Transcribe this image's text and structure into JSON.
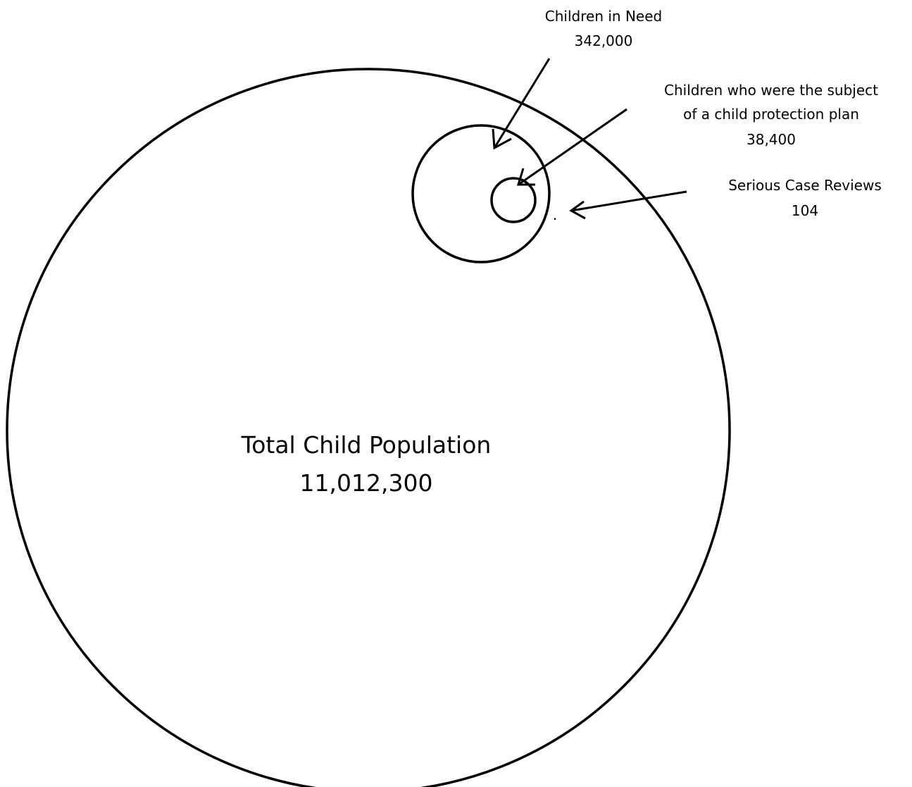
{
  "diagram": {
    "population": {
      "name": "Total Child Population",
      "value": "11,012,300"
    },
    "children_in_need": {
      "name": "Children in Need",
      "value": "342,000"
    },
    "protection_plan": {
      "name_line1": "Children who were the subject",
      "name_line2": "of a child protection plan",
      "value": "38,400"
    },
    "serious_case_reviews": {
      "name": "Serious Case Reviews",
      "value": "104",
      "marker": "."
    },
    "colors": {
      "stroke": "#000000",
      "background": "#ffffff"
    }
  }
}
